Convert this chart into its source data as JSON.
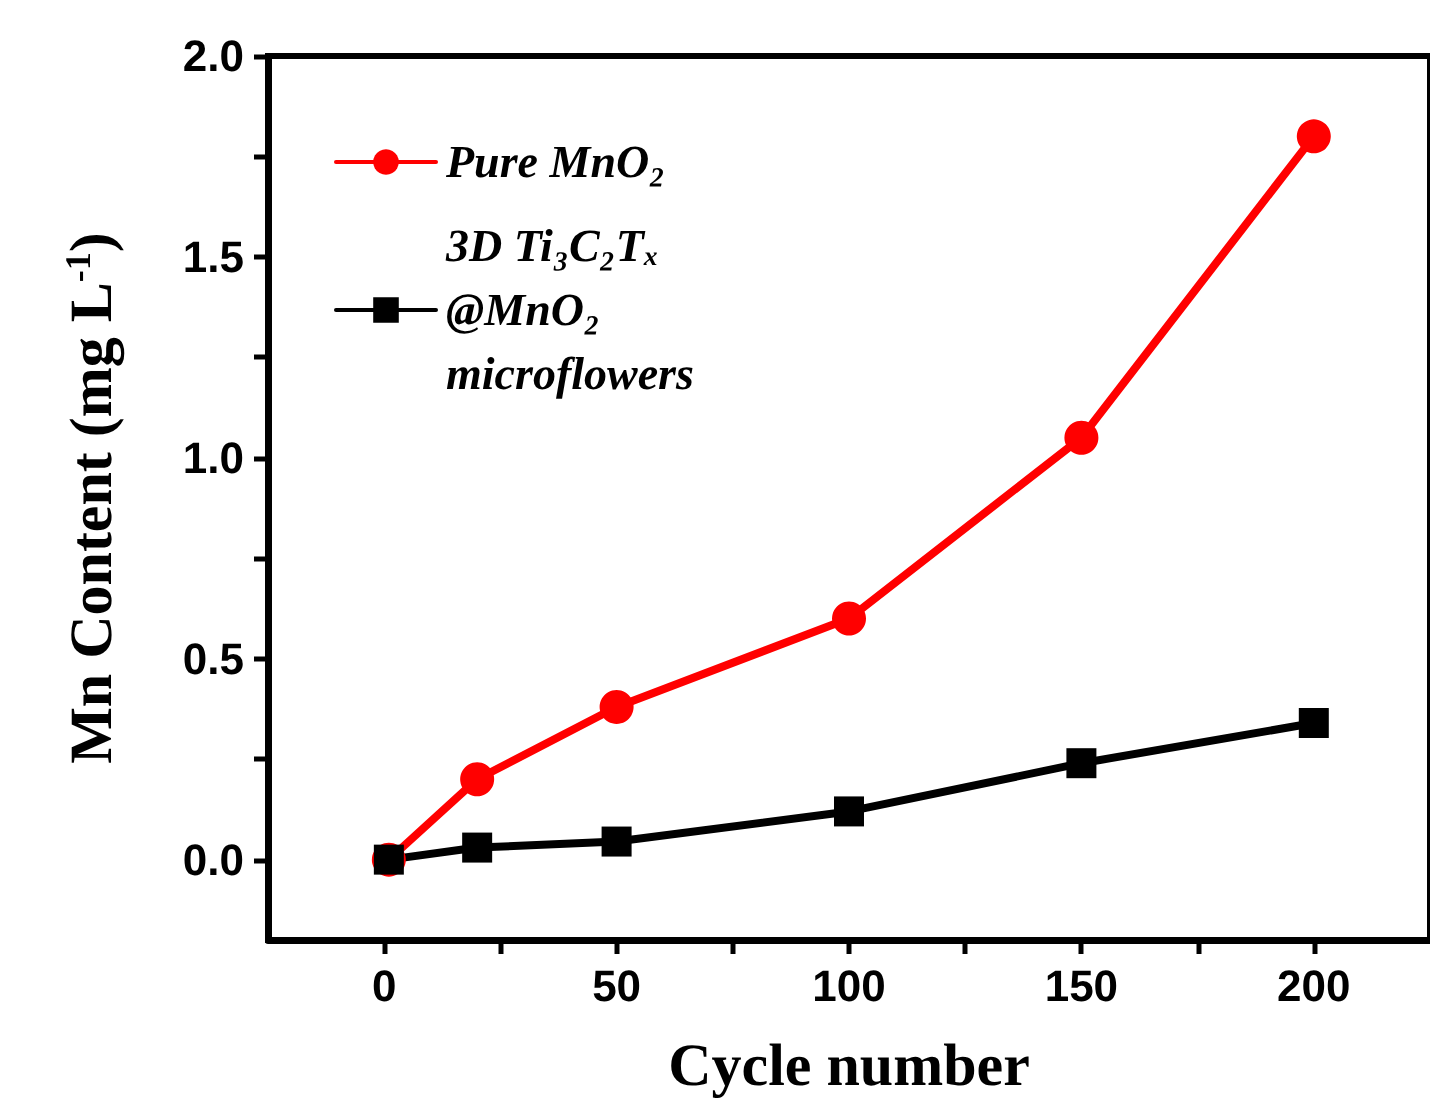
{
  "chart_data": {
    "type": "line",
    "xlabel": "Cycle number",
    "ylabel": "Mn Content (mg L$^{-1}$)",
    "x": [
      1,
      20,
      50,
      100,
      150,
      200
    ],
    "series": [
      {
        "name": "Pure MnO₂",
        "color": "#ff0000",
        "marker": "circle",
        "values": [
          0,
          0.2,
          0.38,
          0.6,
          1.05,
          1.8
        ]
      },
      {
        "name": "3D Ti₃C₂Tₓ@MnO₂ microflowers",
        "color": "#000000",
        "marker": "square",
        "values": [
          0,
          0.03,
          0.045,
          0.12,
          0.24,
          0.34
        ]
      }
    ],
    "xlim": [
      -25,
      225
    ],
    "xticks": [
      0,
      {
        "value": 25,
        "label": null
      },
      50,
      {
        "value": 75,
        "label": null
      },
      100,
      {
        "value": 125,
        "label": null
      },
      150,
      {
        "value": 175,
        "label": null
      },
      200
    ],
    "ylim": [
      -0.2,
      2.0
    ],
    "yticks": [
      {
        "value": 0,
        "label": "0.0"
      },
      {
        "value": 0.25,
        "label": null
      },
      {
        "value": 0.5,
        "label": "0.5"
      },
      {
        "value": 0.75,
        "label": null
      },
      {
        "value": 1,
        "label": "1.0"
      },
      {
        "value": 1.25,
        "label": null
      },
      {
        "value": 1.5,
        "label": "1.5"
      },
      {
        "value": 1.75,
        "label": null
      },
      {
        "value": 2,
        "label": "2.0"
      }
    ],
    "grid": false,
    "legend": "top left",
    "line_style": "solid"
  }
}
